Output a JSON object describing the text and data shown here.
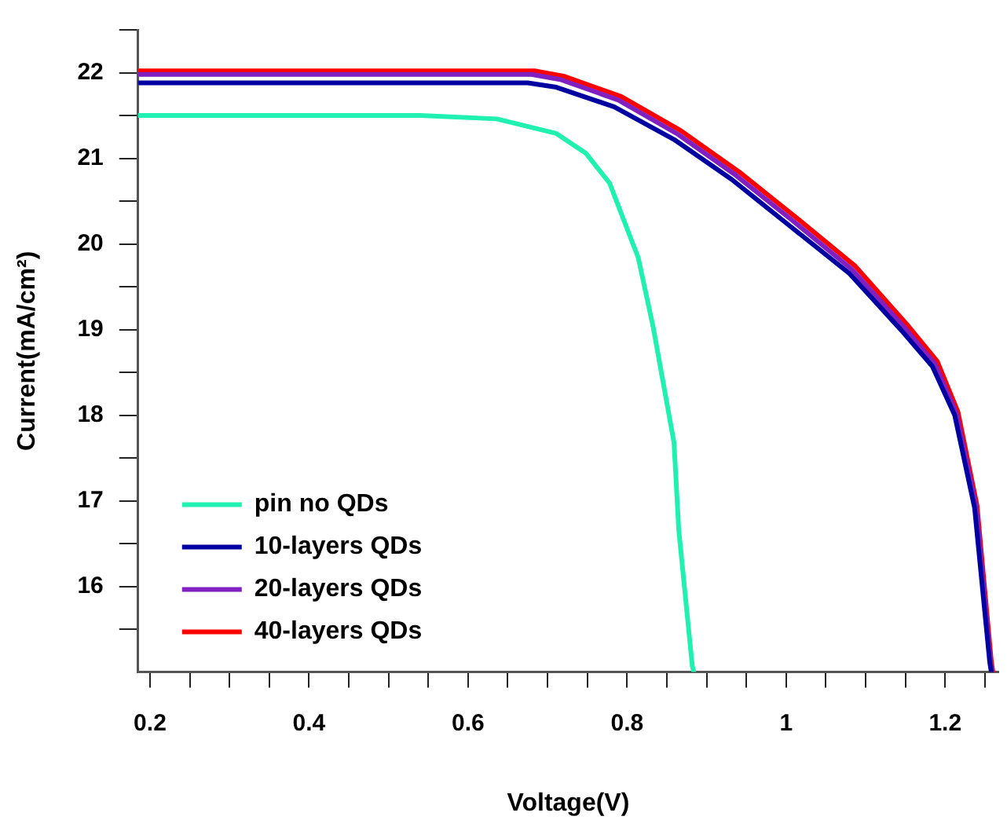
{
  "chart_data": {
    "type": "line",
    "xlabel": "Voltage(V)",
    "ylabel": "Current(mA/cm²)",
    "xlim": [
      0.185,
      1.267
    ],
    "ylim": [
      15,
      22.5
    ],
    "xticks": [
      {
        "value": 0.2,
        "label": "0.2"
      },
      {
        "value": 0.25,
        "label": null
      },
      {
        "value": 0.3,
        "label": null
      },
      {
        "value": 0.35,
        "label": null
      },
      {
        "value": 0.4,
        "label": "0.4"
      },
      {
        "value": 0.45,
        "label": null
      },
      {
        "value": 0.5,
        "label": null
      },
      {
        "value": 0.55,
        "label": null
      },
      {
        "value": 0.6,
        "label": "0.6"
      },
      {
        "value": 0.65,
        "label": null
      },
      {
        "value": 0.7,
        "label": null
      },
      {
        "value": 0.75,
        "label": null
      },
      {
        "value": 0.8,
        "label": "0.8"
      },
      {
        "value": 0.85,
        "label": null
      },
      {
        "value": 0.9,
        "label": null
      },
      {
        "value": 0.95,
        "label": null
      },
      {
        "value": 1,
        "label": "1"
      },
      {
        "value": 1.05,
        "label": null
      },
      {
        "value": 1.1,
        "label": null
      },
      {
        "value": 1.15,
        "label": null
      },
      {
        "value": 1.2,
        "label": "1.2"
      },
      {
        "value": 1.25,
        "label": null
      }
    ],
    "yticks": [
      {
        "value": 15.5,
        "label": null
      },
      16,
      {
        "value": 16.5,
        "label": null
      },
      17,
      {
        "value": 17.5,
        "label": null
      },
      18,
      {
        "value": 18.5,
        "label": null
      },
      19,
      {
        "value": 19.5,
        "label": null
      },
      20,
      {
        "value": 20.5,
        "label": null
      },
      21,
      {
        "value": 21.5,
        "label": null
      },
      22,
      {
        "value": 22.5,
        "label": null
      }
    ],
    "grid": false,
    "legend": "bottom left",
    "marker": "none",
    "line_style": "solid",
    "series": [
      {
        "name": "pin no QDs",
        "color": "#20f0b0",
        "x": [
          0.185,
          0.54,
          0.636,
          0.711,
          0.748,
          0.778,
          0.814,
          0.833,
          0.859,
          0.865,
          0.882,
          0.884
        ],
        "values": [
          21.5,
          21.5,
          21.46,
          21.29,
          21.06,
          20.71,
          19.84,
          19.02,
          17.68,
          16.66,
          15.07,
          15
        ]
      },
      {
        "name": "10-layers QDs",
        "color": "#0000a0",
        "x": [
          0.185,
          0.675,
          0.711,
          0.784,
          0.859,
          0.932,
          1.006,
          1.079,
          1.145,
          1.184,
          1.212,
          1.237,
          1.256,
          1.258
        ],
        "values": [
          21.88,
          21.88,
          21.83,
          21.6,
          21.22,
          20.75,
          20.2,
          19.66,
          18.99,
          18.57,
          18.0,
          16.92,
          15.12,
          15
        ]
      },
      {
        "name": "20-layers QDs",
        "color": "#8020c0",
        "x": [
          0.185,
          0.68,
          0.716,
          0.789,
          0.864,
          0.937,
          1.011,
          1.083,
          1.148,
          1.187,
          1.214,
          1.239,
          1.257,
          1.259
        ],
        "values": [
          21.98,
          21.98,
          21.92,
          21.68,
          21.28,
          20.8,
          20.25,
          19.7,
          19.03,
          18.6,
          18.02,
          16.93,
          15.12,
          15
        ]
      },
      {
        "name": "40-layers QDs",
        "color": "#ff0000",
        "x": [
          0.185,
          0.685,
          0.72,
          0.793,
          0.868,
          0.941,
          1.015,
          1.087,
          1.151,
          1.19,
          1.216,
          1.24,
          1.258,
          1.26
        ],
        "values": [
          22.02,
          22.02,
          21.96,
          21.72,
          21.32,
          20.84,
          20.29,
          19.74,
          19.07,
          18.63,
          18.04,
          16.95,
          15.13,
          15
        ]
      }
    ]
  }
}
